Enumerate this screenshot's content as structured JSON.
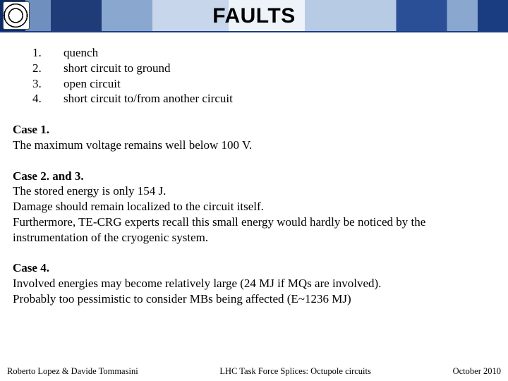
{
  "colors": {
    "text": "#000000",
    "background": "#ffffff",
    "header_border": "#1a3d82",
    "header_gradient": [
      "#0a2c6e",
      "#6f8fbf",
      "#1f3c78",
      "#8aa7d0",
      "#c7d6eb",
      "#eef3fa",
      "#b8cbe5",
      "#2a4f97",
      "#8aa7d0",
      "#1a3d82"
    ]
  },
  "typography": {
    "title_font": "Arial",
    "title_size_pt": 22,
    "title_weight": 700,
    "body_font": "Times New Roman",
    "body_size_pt": 13,
    "footer_size_pt": 9.5
  },
  "title": "FAULTS",
  "faults": [
    {
      "n": "1.",
      "text": "quench"
    },
    {
      "n": "2.",
      "text": "short circuit to ground"
    },
    {
      "n": "3.",
      "text": "open circuit"
    },
    {
      "n": "4.",
      "text": "short circuit to/from another circuit"
    }
  ],
  "cases": [
    {
      "title": "Case 1.",
      "lines": [
        "The maximum voltage remains well below 100 V."
      ]
    },
    {
      "title": "Case 2. and 3.",
      "lines": [
        "The stored energy is only 154 J.",
        "Damage should remain localized to the circuit itself.",
        "Furthermore, TE-CRG experts recall this small energy would hardly be noticed by the instrumentation of the cryogenic system."
      ]
    },
    {
      "title": "Case 4.",
      "lines": [
        "Involved energies may become relatively large (24 MJ if MQs are involved).",
        "Probably too pessimistic to consider MBs being affected (E~1236 MJ)"
      ]
    }
  ],
  "footer": {
    "left": "Roberto Lopez & Davide Tommasini",
    "center": "LHC Task Force Splices: Octupole circuits",
    "right": "October 2010"
  }
}
